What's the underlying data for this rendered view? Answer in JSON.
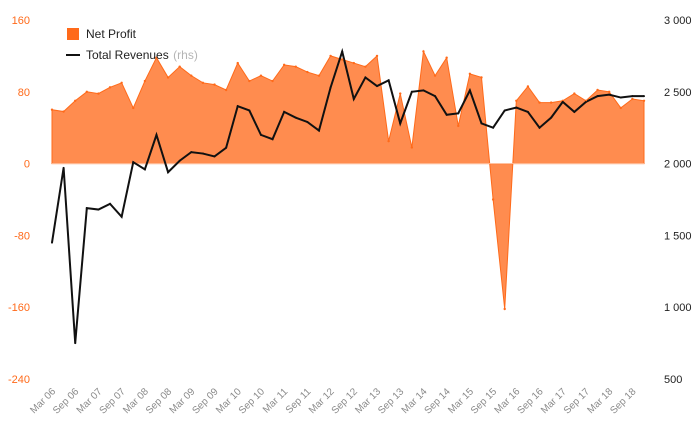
{
  "chart_data": {
    "type": "area",
    "x": [
      "Mar 06",
      "Jun 06",
      "Sep 06",
      "Dec 06",
      "Mar 07",
      "Jun 07",
      "Sep 07",
      "Dec 07",
      "Mar 08",
      "Jun 08",
      "Sep 08",
      "Dec 08",
      "Mar 09",
      "Jun 09",
      "Sep 09",
      "Dec 09",
      "Mar 10",
      "Jun 10",
      "Sep 10",
      "Dec 10",
      "Mar 11",
      "Jun 11",
      "Sep 11",
      "Dec 11",
      "Mar 12",
      "Jun 12",
      "Sep 12",
      "Dec 12",
      "Mar 13",
      "Jun 13",
      "Sep 13",
      "Dec 13",
      "Mar 14",
      "Jun 14",
      "Sep 14",
      "Dec 14",
      "Mar 15",
      "Jun 15",
      "Sep 15",
      "Dec 15",
      "Mar 16",
      "Jun 16",
      "Sep 16",
      "Dec 16",
      "Mar 17",
      "Jun 17",
      "Sep 17",
      "Dec 17",
      "Mar 18",
      "Jun 18",
      "Sep 18",
      "Dec 18"
    ],
    "x_tick_labels": [
      "Mar 06",
      "Sep 06",
      "Mar 07",
      "Sep 07",
      "Mar 08",
      "Sep 08",
      "Mar 09",
      "Sep 09",
      "Mar 10",
      "Sep 10",
      "Mar 11",
      "Sep 11",
      "Mar 12",
      "Sep 12",
      "Mar 13",
      "Sep 13",
      "Mar 14",
      "Sep 14",
      "Mar 15",
      "Sep 15",
      "Mar 16",
      "Sep 16",
      "Mar 17",
      "Sep 17",
      "Mar 18",
      "Sep 18"
    ],
    "series": [
      {
        "name": "Net Profit",
        "kind": "area",
        "axis": "left",
        "color": "#ff8c4f",
        "values": [
          60,
          58,
          70,
          80,
          78,
          85,
          90,
          62,
          92,
          118,
          96,
          108,
          98,
          90,
          88,
          82,
          112,
          92,
          98,
          92,
          110,
          108,
          102,
          98,
          120,
          116,
          112,
          108,
          120,
          25,
          78,
          18,
          125,
          98,
          118,
          42,
          100,
          96,
          -40,
          -162,
          70,
          86,
          68,
          68,
          70,
          78,
          70,
          82,
          80,
          62,
          72,
          70
        ]
      },
      {
        "name": "Total Revenues",
        "note": "(rhs)",
        "kind": "line",
        "axis": "right",
        "color": "#111111",
        "values": [
          1450,
          1970,
          750,
          1690,
          1680,
          1720,
          1630,
          2010,
          1960,
          2200,
          1940,
          2020,
          2080,
          2070,
          2050,
          2110,
          2400,
          2370,
          2200,
          2170,
          2360,
          2320,
          2290,
          2230,
          2530,
          2780,
          2450,
          2600,
          2540,
          2580,
          2280,
          2500,
          2510,
          2470,
          2340,
          2350,
          2510,
          2280,
          2250,
          2370,
          2390,
          2360,
          2250,
          2320,
          2430,
          2360,
          2430,
          2470,
          2480,
          2460,
          2470,
          2470
        ]
      }
    ],
    "left_axis": {
      "ylim": [
        -240,
        160
      ],
      "ticks": [
        "160",
        "80",
        "0",
        "-80",
        "-160",
        "-240"
      ],
      "tick_values": [
        160,
        80,
        0,
        -80,
        -160,
        -240
      ],
      "color": "#ff6a1a"
    },
    "right_axis": {
      "ylim": [
        500,
        3000
      ],
      "ticks": [
        "3 000",
        "2 500",
        "2 000",
        "1 500",
        "1 000",
        "500"
      ],
      "tick_values": [
        3000,
        2500,
        2000,
        1500,
        1000,
        500
      ],
      "color": "#222222"
    },
    "grid": false,
    "legend": "top-left",
    "title": "",
    "xlabel": "",
    "ylabel": ""
  }
}
